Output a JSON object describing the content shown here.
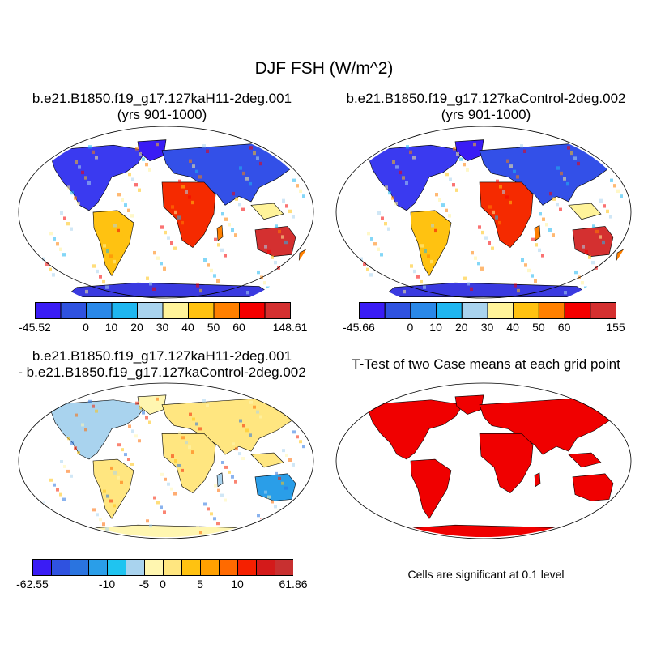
{
  "title": "DJF FSH (W/m^2)",
  "panels": [
    {
      "id": "p1",
      "title_lines": [
        "b.e21.B1850.f19_g17.127kaH11-2deg.001",
        "(yrs 901-1000)"
      ],
      "colorbar": {
        "colors": [
          "#3a1cf5",
          "#2f52e0",
          "#2a88e8",
          "#1fb6f0",
          "#a9d3ee",
          "#fff39a",
          "#ffc211",
          "#ff8000",
          "#f50000",
          "#d43030"
        ],
        "labels": [
          "-45.52",
          "0",
          "10",
          "20",
          "30",
          "40",
          "50",
          "60",
          "148.61"
        ],
        "label_positions": [
          0,
          2,
          3,
          4,
          5,
          6,
          7,
          8,
          10
        ]
      }
    },
    {
      "id": "p2",
      "title_lines": [
        "b.e21.B1850.f19_g17.127kaControl-2deg.002",
        "(yrs 901-1000)"
      ],
      "colorbar": {
        "colors": [
          "#3a1cf5",
          "#2f52e0",
          "#2a88e8",
          "#1fb6f0",
          "#a9d3ee",
          "#fff39a",
          "#ffc211",
          "#ff8000",
          "#f50000",
          "#d43030"
        ],
        "labels": [
          "-45.66",
          "0",
          "10",
          "20",
          "30",
          "40",
          "50",
          "60",
          "155"
        ],
        "label_positions": [
          0,
          2,
          3,
          4,
          5,
          6,
          7,
          8,
          10
        ]
      }
    },
    {
      "id": "p3",
      "title_lines": [
        "b.e21.B1850.f19_g17.127kaH11-2deg.001",
        "- b.e21.B1850.f19_g17.127kaControl-2deg.002"
      ],
      "colorbar": {
        "colors": [
          "#3a1cf5",
          "#2f52e0",
          "#2a74e0",
          "#2a9ee8",
          "#1fc4f0",
          "#a9d3ee",
          "#fff6b0",
          "#ffe680",
          "#ffc211",
          "#ffa000",
          "#ff6a00",
          "#f52000",
          "#d41a1a",
          "#c83030"
        ],
        "labels": [
          "-62.55",
          "-10",
          "-5",
          "0",
          "5",
          "10",
          "61.86"
        ],
        "label_positions": [
          0,
          4,
          6,
          7,
          9,
          11,
          14
        ]
      }
    },
    {
      "id": "p4",
      "title_lines": [
        "T-Test of two Case means at each grid point"
      ],
      "note": "Cells are significant at 0.1 level"
    }
  ]
}
